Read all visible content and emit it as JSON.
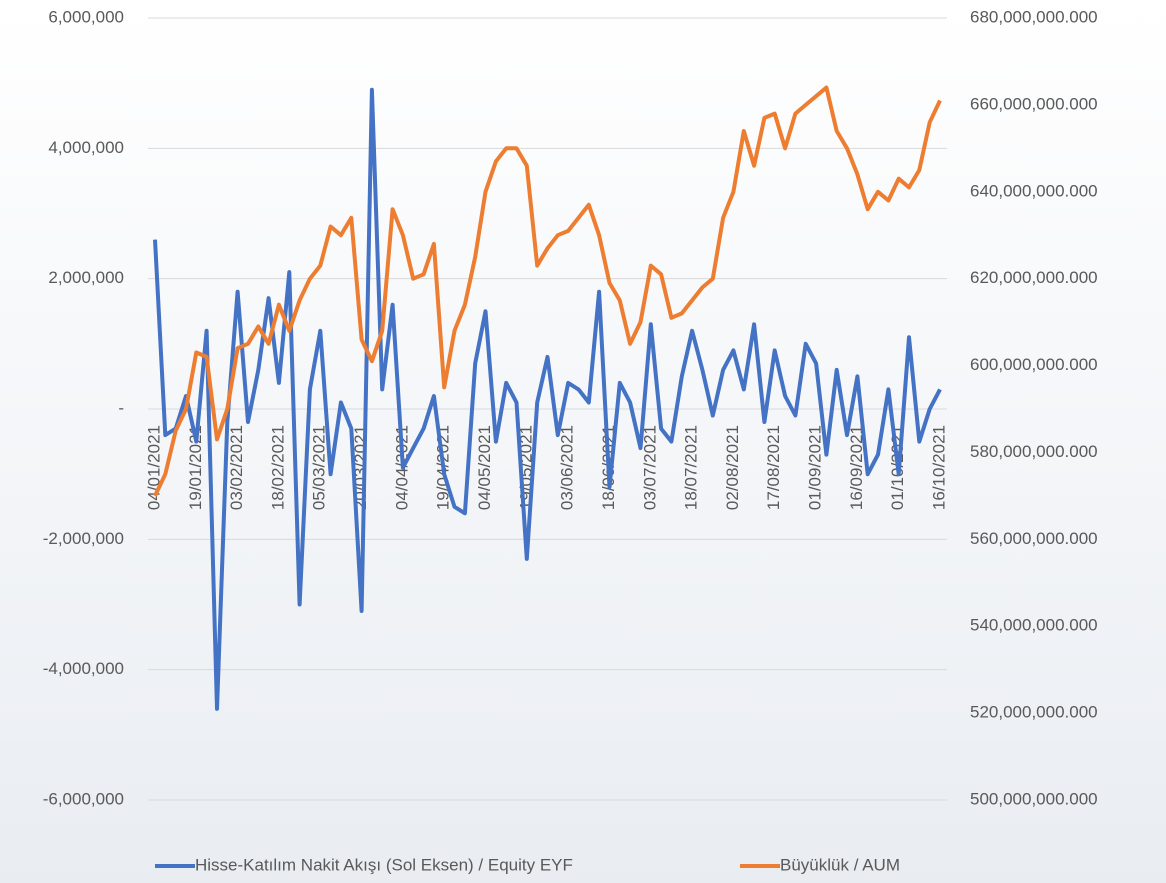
{
  "chart_data": {
    "type": "line",
    "categories": [
      "04/01/2021",
      null,
      null,
      null,
      "19/01/2021",
      null,
      null,
      null,
      "03/02/2021",
      null,
      null,
      null,
      "18/02/2021",
      null,
      null,
      null,
      "05/03/2021",
      null,
      null,
      null,
      "20/03/2021",
      null,
      null,
      null,
      "04/04/2021",
      null,
      null,
      null,
      "19/04/2021",
      null,
      null,
      null,
      "04/05/2021",
      null,
      null,
      null,
      "19/05/2021",
      null,
      null,
      null,
      "03/06/2021",
      null,
      null,
      null,
      "18/06/2021",
      null,
      null,
      null,
      "03/07/2021",
      null,
      null,
      null,
      "18/07/2021",
      null,
      null,
      null,
      "02/08/2021",
      null,
      null,
      null,
      "17/08/2021",
      null,
      null,
      null,
      "01/09/2021",
      null,
      null,
      null,
      "16/09/2021",
      null,
      null,
      null,
      "01/10/2021",
      null,
      null,
      null,
      "16/10/2021"
    ],
    "series": [
      {
        "name": "Hisse-Katılım Nakit Akışı (Sol Eksen) / Equity EYF",
        "color": "#4472c4",
        "axis": "y",
        "values": [
          2600000,
          -400000,
          -300000,
          200000,
          -500000,
          1200000,
          -4600000,
          -200000,
          1800000,
          -200000,
          600000,
          1700000,
          400000,
          2100000,
          -3000000,
          300000,
          1200000,
          -1000000,
          100000,
          -300000,
          -3100000,
          4900000,
          300000,
          1600000,
          -900000,
          -600000,
          -300000,
          200000,
          -1000000,
          -1500000,
          -1600000,
          700000,
          1500000,
          -500000,
          400000,
          100000,
          -2300000,
          100000,
          800000,
          -400000,
          400000,
          300000,
          100000,
          1800000,
          -1200000,
          400000,
          100000,
          -600000,
          1300000,
          -300000,
          -500000,
          500000,
          1200000,
          600000,
          -100000,
          600000,
          900000,
          300000,
          1300000,
          -200000,
          900000,
          200000,
          -100000,
          1000000,
          700000,
          -700000,
          600000,
          -400000,
          500000,
          -1000000,
          -700000,
          300000,
          -1000000,
          1100000,
          -500000,
          0,
          300000
        ]
      },
      {
        "name": "Büyüklük / AUM",
        "color": "#ed7d31",
        "axis": "y2",
        "values": [
          570000000000,
          575000000000,
          585000000000,
          590000000000,
          603000000000,
          602000000000,
          583000000000,
          590000000000,
          604000000000,
          605000000000,
          609000000000,
          605000000000,
          614000000000,
          608000000000,
          615000000000,
          620000000000,
          623000000000,
          632000000000,
          630000000000,
          634000000000,
          606000000000,
          601000000000,
          608000000000,
          636000000000,
          630000000000,
          620000000000,
          621000000000,
          628000000000,
          595000000000,
          608000000000,
          614000000000,
          625000000000,
          640000000000,
          647000000000,
          650000000000,
          650000000000,
          646000000000,
          623000000000,
          627000000000,
          630000000000,
          631000000000,
          634000000000,
          637000000000,
          630000000000,
          619000000000,
          615000000000,
          605000000000,
          610000000000,
          623000000000,
          621000000000,
          611000000000,
          612000000000,
          615000000000,
          618000000000,
          620000000000,
          634000000000,
          640000000000,
          654000000000,
          646000000000,
          657000000000,
          658000000000,
          650000000000,
          658000000000,
          660000000000,
          662000000000,
          664000000000,
          654000000000,
          650000000000,
          644000000000,
          636000000000,
          640000000000,
          638000000000,
          643000000000,
          641000000000,
          645000000000,
          656000000000,
          661000000000
        ]
      }
    ],
    "ylim": [
      -6000000,
      6000000
    ],
    "yticks": [
      {
        "value": -6000000,
        "label": "-6,000,000"
      },
      {
        "value": -4000000,
        "label": "-4,000,000"
      },
      {
        "value": -2000000,
        "label": "-2,000,000"
      },
      {
        "value": 0,
        "label": "-"
      },
      {
        "value": 2000000,
        "label": "2,000,000"
      },
      {
        "value": 4000000,
        "label": "4,000,000"
      },
      {
        "value": 6000000,
        "label": "6,000,000"
      }
    ],
    "y2lim": [
      500000000000,
      680000000000
    ],
    "y2ticks": [
      {
        "value": 500000000000,
        "label": "500,000,000.000"
      },
      {
        "value": 520000000000,
        "label": "520,000,000.000"
      },
      {
        "value": 540000000000,
        "label": "540,000,000.000"
      },
      {
        "value": 560000000000,
        "label": "560,000,000.000"
      },
      {
        "value": 580000000000,
        "label": "580,000,000.000"
      },
      {
        "value": 600000000000,
        "label": "600,000,000.000"
      },
      {
        "value": 620000000000,
        "label": "620,000,000.000"
      },
      {
        "value": 640000000000,
        "label": "640,000,000.000"
      },
      {
        "value": 660000000000,
        "label": "660,000,000.000"
      },
      {
        "value": 680000000000,
        "label": "680,000,000.000"
      }
    ],
    "grid": true,
    "legend": "bottom"
  }
}
